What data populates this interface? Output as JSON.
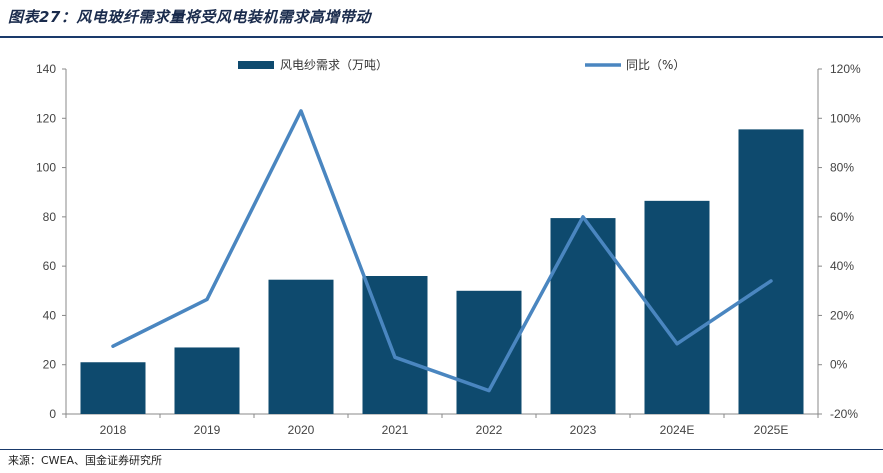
{
  "figure": {
    "title": "图表27：风电玻纤需求量将受风电装机需求高增带动",
    "source": "来源：CWEA、国金证券研究所"
  },
  "colors": {
    "bar": "#0e4a6e",
    "line": "#4a86c0",
    "axis": "#888888"
  },
  "chart_data": {
    "type": "bar",
    "categories": [
      "2018",
      "2019",
      "2020",
      "2021",
      "2022",
      "2023",
      "2024E",
      "2025E"
    ],
    "series": [
      {
        "name": "风电纱需求（万吨）",
        "type": "bar",
        "axis": "left",
        "values": [
          21,
          27,
          54.5,
          56,
          50,
          79.5,
          86.5,
          115.5
        ]
      },
      {
        "name": "同比（%）",
        "type": "line",
        "axis": "right",
        "values": [
          7.5,
          26.5,
          103,
          3,
          -10.5,
          60,
          8.5,
          34
        ]
      }
    ],
    "y_left": {
      "min": 0,
      "max": 140,
      "ticks": [
        "0",
        "20",
        "40",
        "60",
        "80",
        "100",
        "120",
        "140"
      ]
    },
    "y_right": {
      "min": -20,
      "max": 120,
      "ticks": [
        "-20%",
        "0%",
        "20%",
        "40%",
        "60%",
        "80%",
        "100%",
        "120%"
      ]
    },
    "legend_position": "top-center",
    "grid": false
  }
}
